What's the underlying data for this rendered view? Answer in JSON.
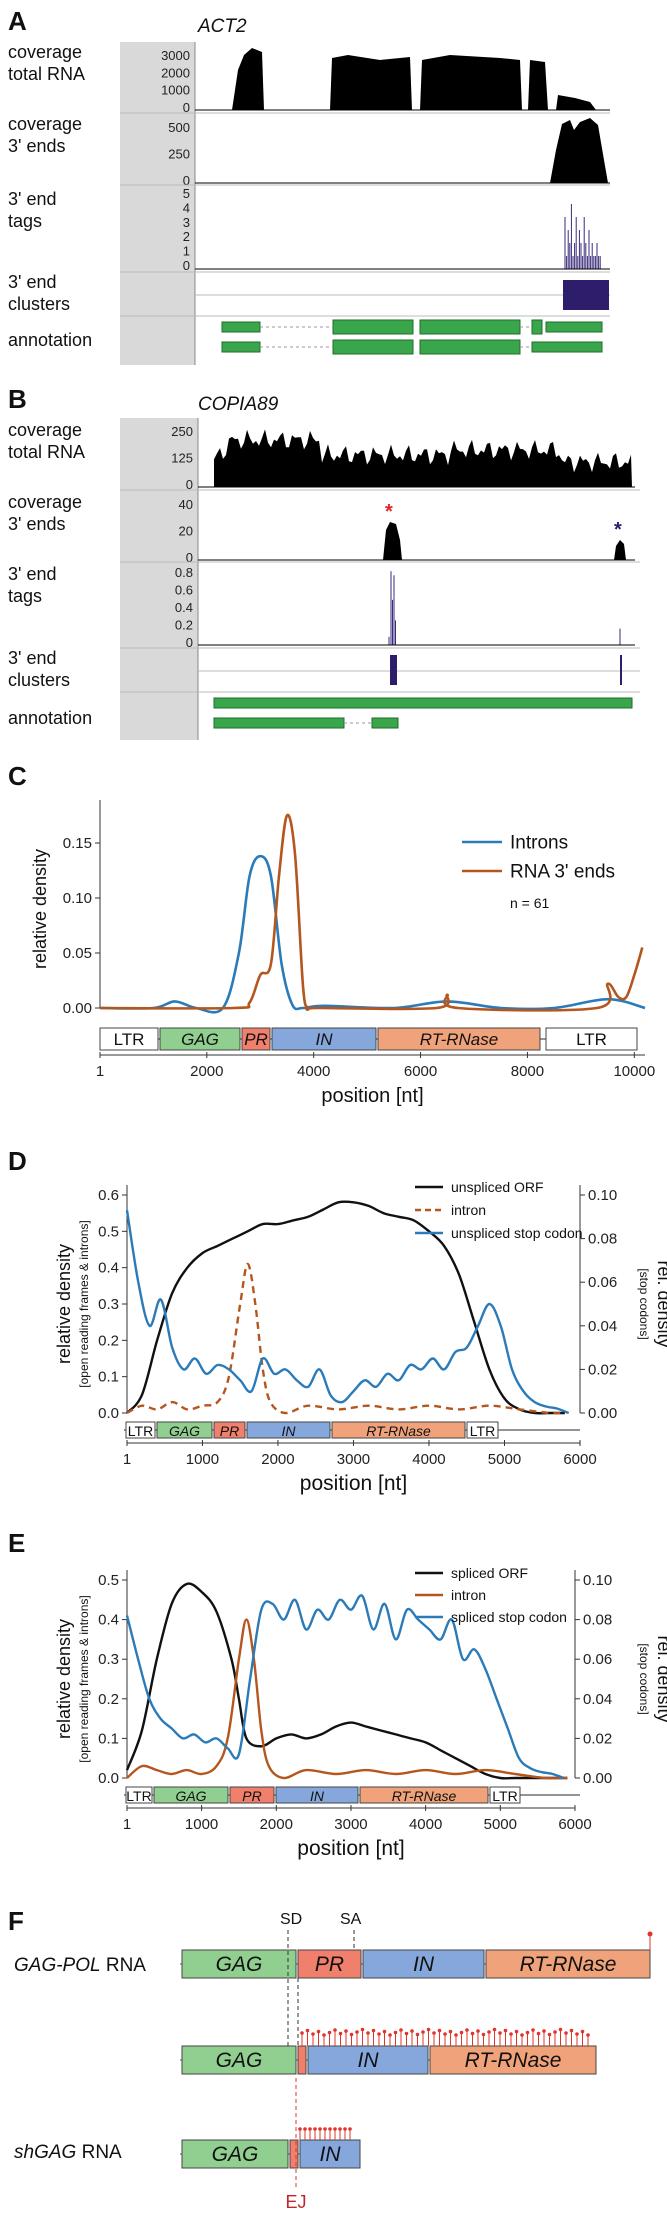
{
  "figure": {
    "panels": {
      "A": {
        "letter": "A",
        "gene": "ACT2",
        "tracks": [
          "coverage\ntotal RNA",
          "coverage\n3' ends",
          "3' end\ntags",
          "3' end\nclusters",
          "annotation"
        ],
        "ticks_total": [
          "3000",
          "2000",
          "1000",
          "0"
        ],
        "ticks_3p": [
          "500",
          "250",
          "0"
        ],
        "ticks_tags": [
          "5",
          "4",
          "3",
          "2",
          "1",
          "0"
        ]
      },
      "B": {
        "letter": "B",
        "gene": "COPIA89",
        "tracks": [
          "coverage\ntotal RNA",
          "coverage\n3' ends",
          "3' end\ntags",
          "3' end\nclusters",
          "annotation"
        ],
        "ticks_total": [
          "250",
          "125",
          "0"
        ],
        "ticks_3p": [
          "40",
          "20",
          "0"
        ],
        "ticks_tags": [
          "0.8",
          "0.6",
          "0.4",
          "0.2",
          "0"
        ],
        "asterisk": "*"
      },
      "C": {
        "letter": "C",
        "ylabel": "relative density",
        "xlabel": "position [nt]",
        "legend": [
          "Introns",
          "RNA 3' ends"
        ],
        "n_label": "n = 61",
        "yticks": [
          "0.15",
          "0.10",
          "0.05",
          "0.00"
        ],
        "xticks": [
          "1",
          "2000",
          "4000",
          "6000",
          "8000",
          "10000"
        ],
        "domains": [
          "LTR",
          "GAG",
          "PR",
          "IN",
          "RT-RNase",
          "LTR"
        ]
      },
      "D": {
        "letter": "D",
        "ylabel": "relative density",
        "ylabel_sub": "[open reading frames & introns]",
        "y2label": "rel. density",
        "y2label_sub": "[stop codons]",
        "xlabel": "position [nt]",
        "legend": [
          "unspliced ORF",
          "intron",
          "unspliced stop codon"
        ],
        "yticks": [
          "0.6",
          "0.5",
          "0.4",
          "0.3",
          "0.2",
          "0.1",
          "0.0"
        ],
        "y2ticks": [
          "0.10",
          "0.08",
          "0.06",
          "0.04",
          "0.02",
          "0.00"
        ],
        "xticks": [
          "1",
          "1000",
          "2000",
          "3000",
          "4000",
          "5000",
          "6000"
        ],
        "domains": [
          "LTR",
          "GAG",
          "PR",
          "IN",
          "RT-RNase",
          "LTR"
        ]
      },
      "E": {
        "letter": "E",
        "ylabel": "relative density",
        "ylabel_sub": "[open reading frames & introns]",
        "y2label": "rel. density",
        "y2label_sub": "[stop codons]",
        "xlabel": "position [nt]",
        "legend": [
          "spliced ORF",
          "intron",
          "spliced stop codon"
        ],
        "yticks": [
          "0.5",
          "0.4",
          "0.3",
          "0.2",
          "0.1",
          "0.0"
        ],
        "y2ticks": [
          "0.10",
          "0.08",
          "0.06",
          "0.04",
          "0.02",
          "0.00"
        ],
        "xticks": [
          "1",
          "1000",
          "2000",
          "3000",
          "4000",
          "5000",
          "6000"
        ],
        "domains": [
          "LTR",
          "GAG",
          "PR",
          "IN",
          "RT-RNase",
          "LTR"
        ]
      },
      "F": {
        "letter": "F",
        "row1_label": "GAG-POL",
        "row1_suffix": " RNA",
        "row3_label": "shGAG",
        "row3_suffix": " RNA",
        "sd": "SD",
        "sa": "SA",
        "ej": "EJ",
        "domains": [
          "GAG",
          "PR",
          "IN",
          "RT-RNase"
        ]
      }
    }
  },
  "chart_data": [
    {
      "type": "line",
      "panel": "C",
      "xlabel": "position [nt]",
      "ylabel": "relative density",
      "xlim": [
        1,
        10200
      ],
      "ylim": [
        0,
        0.18
      ],
      "series": [
        {
          "name": "Introns",
          "color": "#2b7bb9",
          "x": [
            1,
            1000,
            1400,
            1800,
            2300,
            2600,
            2800,
            3000,
            3200,
            3400,
            3600,
            3800,
            4200,
            5500,
            6500,
            7500,
            8500,
            9500,
            10200
          ],
          "y": [
            0,
            0.0,
            0.006,
            0.0,
            0.0,
            0.05,
            0.12,
            0.138,
            0.12,
            0.04,
            0.003,
            0.0,
            0.002,
            0.0,
            0.006,
            0.0,
            0.0,
            0.008,
            0.0
          ]
        },
        {
          "name": "RNA 3' ends",
          "color": "#b5561f",
          "x": [
            1,
            2500,
            2800,
            3000,
            3200,
            3350,
            3500,
            3650,
            3800,
            3900,
            4100,
            6300,
            6500,
            6700,
            9300,
            9500,
            9700,
            9850,
            10000,
            10150
          ],
          "y": [
            0,
            0,
            0.005,
            0.03,
            0.04,
            0.12,
            0.175,
            0.14,
            0.02,
            0.0,
            0,
            0,
            0.012,
            0,
            0,
            0.022,
            0.01,
            0.01,
            0.03,
            0.055
          ]
        }
      ]
    },
    {
      "type": "line",
      "panel": "D",
      "xlabel": "position [nt]",
      "xlim": [
        1,
        6000
      ],
      "ylim": [
        0,
        0.6
      ],
      "y2lim": [
        0,
        0.1
      ],
      "series": [
        {
          "name": "unspliced ORF",
          "axis": "left",
          "color": "#111111",
          "x": [
            1,
            200,
            400,
            600,
            800,
            1000,
            1200,
            1400,
            1600,
            1800,
            2000,
            2200,
            2400,
            2600,
            2800,
            3000,
            3200,
            3400,
            3600,
            3800,
            4000,
            4200,
            4400,
            4600,
            4800,
            5000,
            5200,
            5400,
            5600,
            5800
          ],
          "y": [
            0.0,
            0.05,
            0.2,
            0.33,
            0.4,
            0.44,
            0.46,
            0.48,
            0.5,
            0.52,
            0.52,
            0.53,
            0.54,
            0.56,
            0.58,
            0.58,
            0.57,
            0.55,
            0.54,
            0.53,
            0.5,
            0.46,
            0.38,
            0.25,
            0.12,
            0.04,
            0.01,
            0.0,
            0.0,
            0.0
          ]
        },
        {
          "name": "intron",
          "axis": "left",
          "color": "#b5561f",
          "dashed": true,
          "x": [
            1,
            200,
            400,
            600,
            800,
            1000,
            1200,
            1350,
            1500,
            1600,
            1700,
            1800,
            1900,
            2100,
            2400,
            2800,
            3200,
            3600,
            4000,
            4400,
            4800,
            5200,
            5600,
            5800
          ],
          "y": [
            0.0,
            0.02,
            0.01,
            0.03,
            0.01,
            0.02,
            0.03,
            0.1,
            0.3,
            0.41,
            0.3,
            0.12,
            0.03,
            0.0,
            0.02,
            0.01,
            0.02,
            0.01,
            0.02,
            0.01,
            0.02,
            0.01,
            0.0,
            0.0
          ]
        },
        {
          "name": "unspliced stop codon",
          "axis": "right",
          "color": "#2b7bb9",
          "x": [
            1,
            150,
            300,
            450,
            600,
            750,
            900,
            1050,
            1200,
            1350,
            1500,
            1650,
            1800,
            1950,
            2100,
            2250,
            2400,
            2550,
            2700,
            2850,
            3000,
            3150,
            3300,
            3450,
            3600,
            3750,
            3900,
            4050,
            4200,
            4350,
            4500,
            4650,
            4800,
            4950,
            5100,
            5250,
            5400,
            5550,
            5700,
            5850
          ],
          "y": [
            0.093,
            0.06,
            0.04,
            0.052,
            0.03,
            0.02,
            0.025,
            0.018,
            0.022,
            0.02,
            0.015,
            0.01,
            0.025,
            0.018,
            0.02,
            0.015,
            0.012,
            0.02,
            0.008,
            0.005,
            0.01,
            0.015,
            0.012,
            0.018,
            0.015,
            0.022,
            0.02,
            0.025,
            0.02,
            0.028,
            0.03,
            0.04,
            0.05,
            0.04,
            0.02,
            0.01,
            0.005,
            0.003,
            0.002,
            0.0
          ]
        }
      ]
    },
    {
      "type": "line",
      "panel": "E",
      "xlabel": "position [nt]",
      "xlim": [
        1,
        6000
      ],
      "ylim": [
        0,
        0.5
      ],
      "y2lim": [
        0,
        0.1
      ],
      "series": [
        {
          "name": "spliced ORF",
          "axis": "left",
          "color": "#111111",
          "x": [
            1,
            200,
            400,
            600,
            800,
            1000,
            1200,
            1400,
            1500,
            1600,
            1800,
            2000,
            2200,
            2400,
            2600,
            2800,
            3000,
            3200,
            3400,
            3600,
            3800,
            4000,
            4200,
            4400,
            4600,
            4800,
            5000,
            5200,
            5600,
            5900
          ],
          "y": [
            0.02,
            0.12,
            0.3,
            0.44,
            0.49,
            0.47,
            0.42,
            0.3,
            0.2,
            0.1,
            0.08,
            0.1,
            0.11,
            0.1,
            0.11,
            0.13,
            0.14,
            0.13,
            0.12,
            0.11,
            0.1,
            0.09,
            0.07,
            0.05,
            0.03,
            0.01,
            0.0,
            0.0,
            0.0,
            0.0
          ]
        },
        {
          "name": "intron",
          "axis": "left",
          "color": "#b5561f",
          "x": [
            1,
            200,
            400,
            600,
            800,
            1000,
            1200,
            1350,
            1500,
            1600,
            1700,
            1800,
            1900,
            2100,
            2400,
            2800,
            3200,
            3600,
            4000,
            4400,
            4800,
            5200,
            5600,
            5900
          ],
          "y": [
            0.0,
            0.03,
            0.02,
            0.01,
            0.02,
            0.01,
            0.03,
            0.1,
            0.3,
            0.4,
            0.3,
            0.12,
            0.03,
            0.0,
            0.02,
            0.01,
            0.02,
            0.01,
            0.02,
            0.01,
            0.02,
            0.01,
            0.0,
            0.0
          ]
        },
        {
          "name": "spliced stop codon",
          "axis": "right",
          "color": "#2b7bb9",
          "x": [
            1,
            150,
            300,
            450,
            600,
            750,
            900,
            1050,
            1200,
            1350,
            1500,
            1650,
            1800,
            1950,
            2100,
            2250,
            2400,
            2550,
            2700,
            2850,
            3000,
            3150,
            3300,
            3450,
            3600,
            3750,
            3900,
            4050,
            4200,
            4350,
            4500,
            4650,
            4800,
            4950,
            5100,
            5250,
            5400,
            5550,
            5700,
            5850
          ],
          "y": [
            0.082,
            0.06,
            0.04,
            0.03,
            0.025,
            0.02,
            0.022,
            0.018,
            0.02,
            0.015,
            0.012,
            0.05,
            0.085,
            0.088,
            0.08,
            0.09,
            0.075,
            0.085,
            0.08,
            0.09,
            0.085,
            0.092,
            0.075,
            0.088,
            0.07,
            0.085,
            0.08,
            0.075,
            0.07,
            0.08,
            0.06,
            0.065,
            0.055,
            0.04,
            0.025,
            0.01,
            0.005,
            0.003,
            0.002,
            0.0
          ]
        }
      ]
    }
  ]
}
